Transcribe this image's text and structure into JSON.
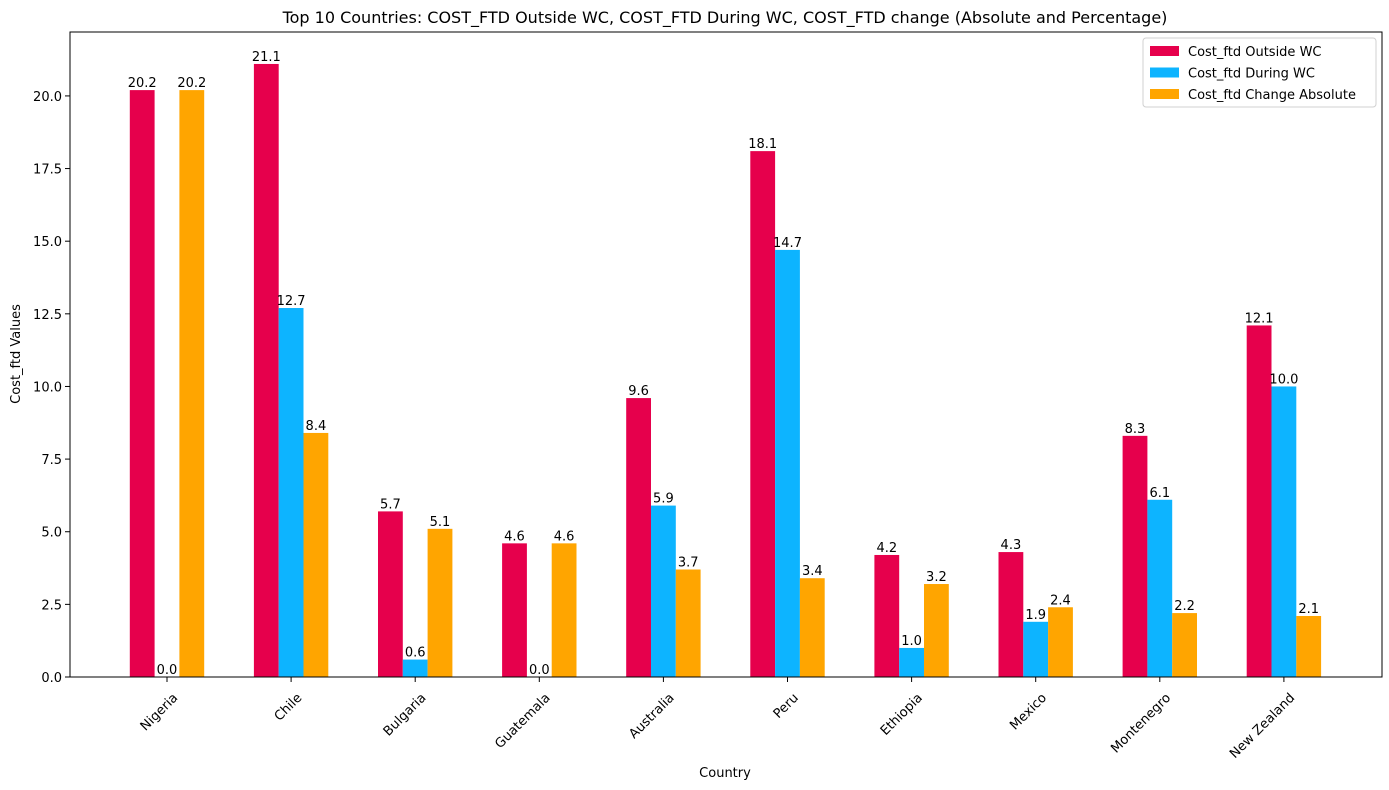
{
  "chart_data": {
    "type": "bar",
    "title": "Top 10 Countries: COST_FTD Outside WC, COST_FTD During WC, COST_FTD change (Absolute and Percentage)",
    "xlabel": "Country",
    "ylabel": "Cost_ftd Values",
    "categories": [
      "Nigeria",
      "Chile",
      "Bulgaria",
      "Guatemala",
      "Australia",
      "Peru",
      "Ethiopia",
      "Mexico",
      "Montenegro",
      "New Zealand"
    ],
    "series": [
      {
        "name": "Cost_ftd Outside WC",
        "color": "#e6004c",
        "values": [
          20.2,
          21.1,
          5.7,
          4.6,
          9.6,
          18.1,
          4.2,
          4.3,
          8.3,
          12.1
        ],
        "labels": [
          "20.2",
          "21.1",
          "5.7",
          "4.6",
          "9.6",
          "18.1",
          "4.2",
          "4.3",
          "8.3",
          "12.1"
        ]
      },
      {
        "name": "Cost_ftd During WC",
        "color": "#0db4ff",
        "values": [
          0.0,
          12.7,
          0.6,
          0.0,
          5.9,
          14.7,
          1.0,
          1.9,
          6.1,
          10.0
        ],
        "labels": [
          "0.0",
          "12.7",
          "0.6",
          "0.0",
          "5.9",
          "14.7",
          "1.0",
          "1.9",
          "6.1",
          "10.0"
        ]
      },
      {
        "name": "Cost_ftd Change Absolute",
        "color": "#ffa500",
        "values": [
          20.2,
          8.4,
          5.1,
          4.6,
          3.7,
          3.4,
          3.2,
          2.4,
          2.2,
          2.1
        ],
        "labels": [
          "20.2",
          "8.4",
          "5.1",
          "4.6",
          "3.7",
          "3.4",
          "3.2",
          "2.4",
          "2.2",
          "2.1"
        ]
      }
    ],
    "yticks": [
      0.0,
      2.5,
      5.0,
      7.5,
      10.0,
      12.5,
      15.0,
      17.5,
      20.0
    ],
    "ytick_labels": [
      "0.0",
      "2.5",
      "5.0",
      "7.5",
      "10.0",
      "12.5",
      "15.0",
      "17.5",
      "20.0"
    ],
    "ylim": [
      0,
      22.2
    ],
    "grid": false,
    "legend_position": "top-right",
    "xtick_rotation": 45
  }
}
